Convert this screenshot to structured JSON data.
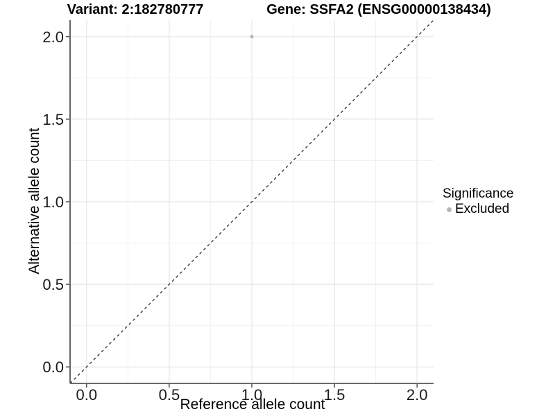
{
  "chart_data": {
    "type": "scatter",
    "title_left": "Variant: 2:182780777",
    "title_right": "Gene: SSFA2 (ENSG00000138434)",
    "xlabel": "Reference allele count",
    "ylabel": "Alternative allele count",
    "xlim": [
      -0.1,
      2.1
    ],
    "ylim": [
      -0.1,
      2.1
    ],
    "xticks": [
      0.0,
      0.5,
      1.0,
      1.5,
      2.0
    ],
    "yticks": [
      0.0,
      0.5,
      1.0,
      1.5,
      2.0
    ],
    "tick_decimals": 1,
    "minor_step": 0.25,
    "grid": "on",
    "points": [
      {
        "x": 1.0,
        "y": 2.0,
        "series": "Excluded"
      }
    ],
    "reference_line": {
      "slope": 1,
      "intercept": 0,
      "style": "dashed"
    },
    "legend": {
      "title": "Significance",
      "position": "right",
      "entries": [
        {
          "label": "Excluded",
          "color": "#b8b8b8"
        }
      ]
    },
    "colors": {
      "background": "#ffffff",
      "point": "#b8b8b8",
      "grid_major": "#e6e6e6",
      "grid_minor": "#f2f2f2",
      "axis_line": "#555555",
      "tick_mark": "#333333",
      "tick_label": "#1a1a1a",
      "reference_line": "#1a1a1a",
      "text": "#000000"
    }
  }
}
